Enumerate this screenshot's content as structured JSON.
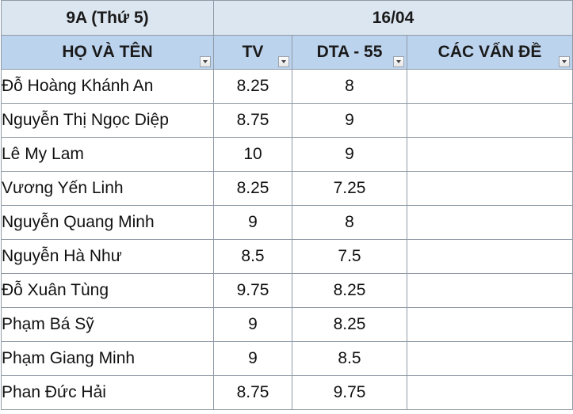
{
  "title_row": {
    "class_label": "9A (Thứ 5)",
    "date_label": "16/04"
  },
  "headers": {
    "name": "HỌ VÀ TÊN",
    "tv": "TV",
    "dta": "DTA - 55",
    "issues": "CÁC VẤN ĐỀ"
  },
  "rows": [
    {
      "name": "Đỗ Hoàng Khánh An",
      "tv": "8.25",
      "dta": "8",
      "issues": ""
    },
    {
      "name": "Nguyễn Thị Ngọc Diệp",
      "tv": "8.75",
      "dta": "9",
      "issues": ""
    },
    {
      "name": "Lê My Lam",
      "tv": "10",
      "dta": "9",
      "issues": ""
    },
    {
      "name": "Vương Yến Linh",
      "tv": "8.25",
      "dta": "7.25",
      "issues": ""
    },
    {
      "name": "Nguyễn Quang Minh",
      "tv": "9",
      "dta": "8",
      "issues": ""
    },
    {
      "name": "Nguyễn Hà Như",
      "tv": "8.5",
      "dta": "7.5",
      "issues": ""
    },
    {
      "name": "Đỗ Xuân Tùng",
      "tv": "9.75",
      "dta": "8.25",
      "issues": ""
    },
    {
      "name": "Phạm Bá Sỹ",
      "tv": "9",
      "dta": "8.25",
      "issues": ""
    },
    {
      "name": "Phạm Giang Minh",
      "tv": "9",
      "dta": "8.5",
      "issues": ""
    },
    {
      "name": "Phan Đức Hải",
      "tv": "8.75",
      "dta": "9.75",
      "issues": ""
    }
  ]
}
